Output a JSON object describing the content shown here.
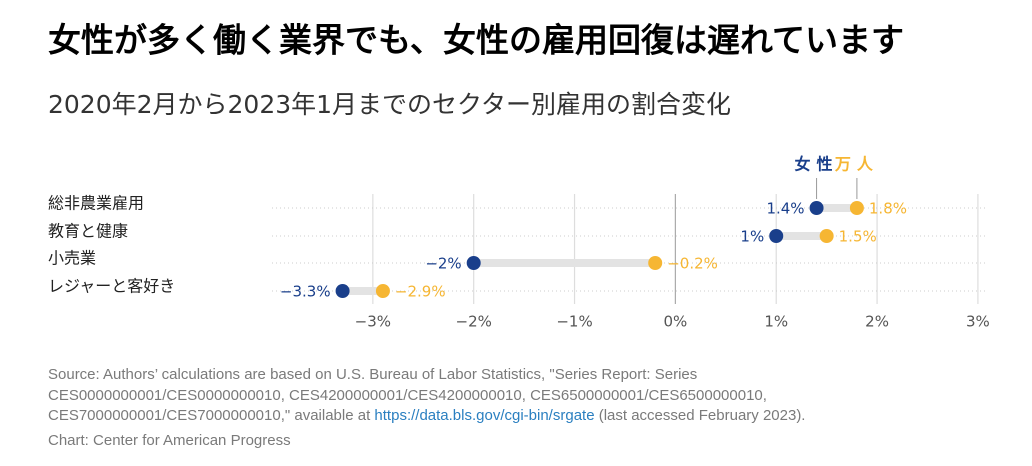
{
  "chart_data": {
    "type": "dumbbell",
    "title": "女性が多く働く業界でも、女性の雇用回復は遅れています",
    "subtitle": "2020年2月から2023年1月までのセクター別雇用の割合変化",
    "categories": [
      "総非農業雇用",
      "教育と健康",
      "小売業",
      "レジャーと客好き"
    ],
    "series": [
      {
        "name": "女性",
        "color": "#1a3f8b",
        "values": [
          1.4,
          1,
          -2,
          -3.3
        ],
        "value_labels": [
          "1.4%",
          "1%",
          "−2%",
          "−3.3%"
        ]
      },
      {
        "name": "万人",
        "color": "#f6b633",
        "values": [
          1.8,
          1.5,
          -0.2,
          -2.9
        ],
        "value_labels": [
          "1.8%",
          "1.5%",
          "−0.2%",
          "−2.9%"
        ]
      }
    ],
    "xlim": [
      -4,
      3.1
    ],
    "xticks": [
      {
        "value": -3,
        "label": "−3%"
      },
      {
        "value": -2,
        "label": "−2%"
      },
      {
        "value": -1,
        "label": "−1%"
      },
      {
        "value": 0,
        "label": "0%"
      },
      {
        "value": 1,
        "label": "1%"
      },
      {
        "value": 2,
        "label": "2%"
      },
      {
        "value": 3,
        "label": "3%"
      }
    ],
    "grid": true,
    "source": "Source: Authors’ calculations are based on U.S. Bureau of Labor Statistics, \"Series Report: Series CES0000000001/CES0000000010, CES4200000001/CES4200000010, CES6500000001/CES6500000010, CES7000000001/CES7000000010,\" available at ",
    "source_link": "https://data.bls.gov/cgi-bin/srgate",
    "source_tail": " (last accessed February 2023).",
    "credit": "Chart: Center for American Progress"
  }
}
